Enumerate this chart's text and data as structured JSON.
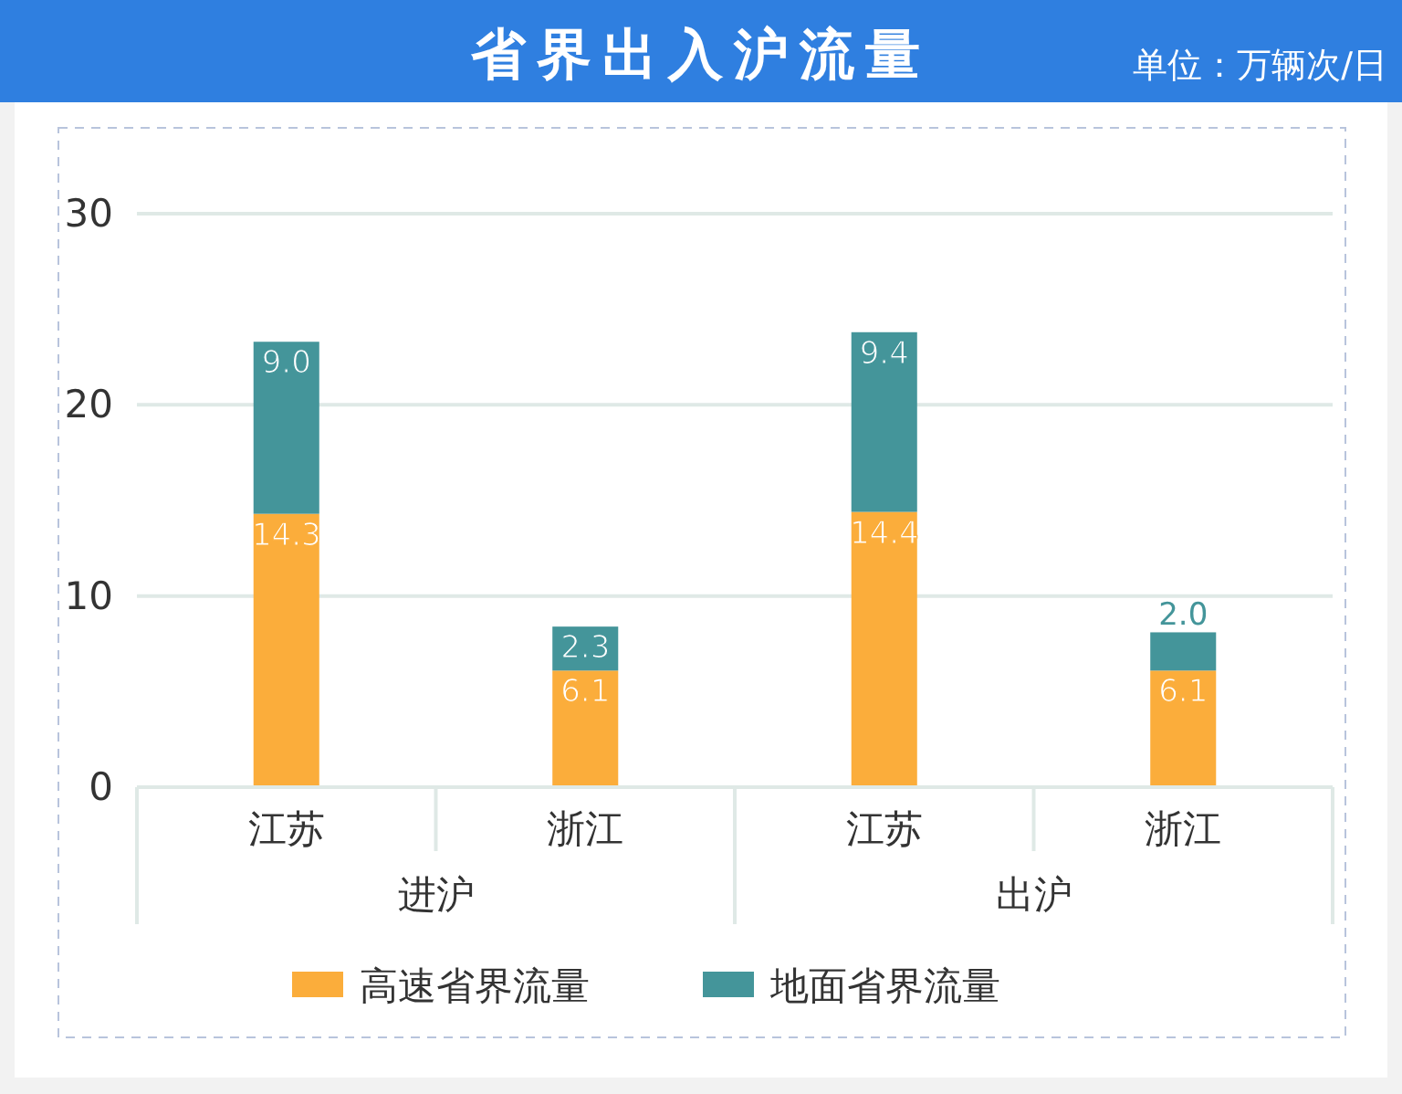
{
  "chart_data": {
    "type": "bar",
    "title": "省界出入沪流量",
    "subtitle": "单位：万辆次/日",
    "categories": [
      "江苏",
      "浙江",
      "江苏",
      "浙江"
    ],
    "annotations": [
      "进沪",
      "出沪"
    ],
    "stacked": true,
    "series": [
      {
        "name": "高速省界流量",
        "color": "#fbad3b",
        "values": [
          14.3,
          6.1,
          14.4,
          6.1
        ],
        "value_labels": [
          "14.3",
          "6.1",
          "14.4",
          "6.1"
        ]
      },
      {
        "name": "地面省界流量",
        "color": "#44959a",
        "values": [
          9.0,
          2.3,
          9.4,
          2.0
        ],
        "value_labels": [
          "9.0",
          "2.3",
          "9.4",
          "2.0"
        ]
      }
    ],
    "ylim": [
      0,
      30
    ],
    "yticks": [
      0,
      10,
      20,
      30
    ],
    "grid": "y",
    "legend": "bottom"
  }
}
